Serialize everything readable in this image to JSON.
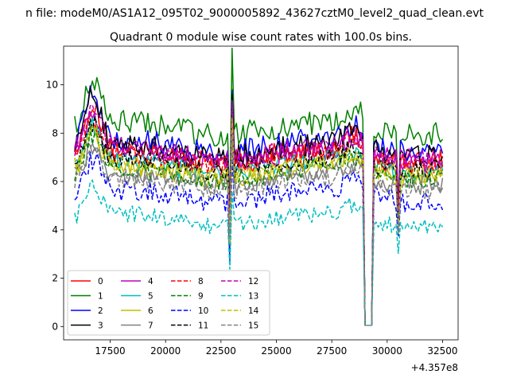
{
  "chart_data": {
    "type": "line",
    "suptitle": "n file: modeM0/AS1A12_095T02_9000005892_43627cztM0_level2_quad_clean.evt",
    "title": "Quadrant 0 module wise count rates with 100.0s bins.",
    "xlabel": "",
    "ylabel": "",
    "x_offset_label": "+4.357e8",
    "xlim": [
      15400,
      33200
    ],
    "ylim": [
      -0.55,
      11.6
    ],
    "x_ticks": [
      17500,
      20000,
      22500,
      25000,
      27500,
      30000,
      32500
    ],
    "x_tick_labels": [
      "17500",
      "20000",
      "22500",
      "25000",
      "27500",
      "30000",
      "32500"
    ],
    "y_ticks": [
      0,
      2,
      4,
      6,
      8,
      10
    ],
    "y_tick_labels": [
      "0",
      "2",
      "4",
      "6",
      "8",
      "10"
    ],
    "x_start": 15900,
    "x_end": 32500,
    "bin": 100,
    "gap": {
      "start": 29000,
      "end": 29300,
      "value": 0.05
    },
    "dips": [
      {
        "x": 22900,
        "width": 100,
        "depth": 3.0
      },
      {
        "x": 30500,
        "width": 120,
        "depth": 2.4
      }
    ],
    "spikes": [
      {
        "x": 23000,
        "height": 2.8
      }
    ],
    "series": [
      {
        "name": "0",
        "color": "#ff0000",
        "dash": "solid",
        "base": 7.1,
        "peak": 1.9,
        "noise": 0.45,
        "seed": 1
      },
      {
        "name": "1",
        "color": "#008000",
        "dash": "solid",
        "base": 8.2,
        "peak": 2.0,
        "noise": 0.5,
        "seed": 2
      },
      {
        "name": "2",
        "color": "#0000ff",
        "dash": "solid",
        "base": 7.5,
        "peak": 2.0,
        "noise": 0.45,
        "seed": 3
      },
      {
        "name": "3",
        "color": "#000000",
        "dash": "solid",
        "base": 7.3,
        "peak": 2.2,
        "noise": 0.45,
        "seed": 4
      },
      {
        "name": "4",
        "color": "#bf00bf",
        "dash": "solid",
        "base": 7.0,
        "peak": 1.6,
        "noise": 0.4,
        "seed": 5
      },
      {
        "name": "5",
        "color": "#00bfbf",
        "dash": "solid",
        "base": 6.6,
        "peak": 1.5,
        "noise": 0.4,
        "seed": 6
      },
      {
        "name": "6",
        "color": "#bfbf00",
        "dash": "solid",
        "base": 6.4,
        "peak": 1.4,
        "noise": 0.4,
        "seed": 7
      },
      {
        "name": "7",
        "color": "#808080",
        "dash": "solid",
        "base": 6.1,
        "peak": 1.3,
        "noise": 0.4,
        "seed": 8
      },
      {
        "name": "8",
        "color": "#ff0000",
        "dash": "dashed",
        "base": 6.9,
        "peak": 1.6,
        "noise": 0.4,
        "seed": 9
      },
      {
        "name": "9",
        "color": "#008000",
        "dash": "dashed",
        "base": 6.3,
        "peak": 1.5,
        "noise": 0.4,
        "seed": 10
      },
      {
        "name": "10",
        "color": "#0000ff",
        "dash": "dashed",
        "base": 5.4,
        "peak": 1.4,
        "noise": 0.45,
        "seed": 11
      },
      {
        "name": "11",
        "color": "#000000",
        "dash": "dashed",
        "base": 6.7,
        "peak": 1.6,
        "noise": 0.4,
        "seed": 12
      },
      {
        "name": "12",
        "color": "#bf00bf",
        "dash": "dashed",
        "base": 7.2,
        "peak": 1.7,
        "noise": 0.4,
        "seed": 13
      },
      {
        "name": "13",
        "color": "#00bfbf",
        "dash": "dashed",
        "base": 4.4,
        "peak": 1.4,
        "noise": 0.35,
        "seed": 14
      },
      {
        "name": "14",
        "color": "#bfbf00",
        "dash": "dashed",
        "base": 6.5,
        "peak": 1.5,
        "noise": 0.4,
        "seed": 15
      },
      {
        "name": "15",
        "color": "#808080",
        "dash": "dashed",
        "base": 5.9,
        "peak": 1.4,
        "noise": 0.4,
        "seed": 16
      }
    ]
  }
}
